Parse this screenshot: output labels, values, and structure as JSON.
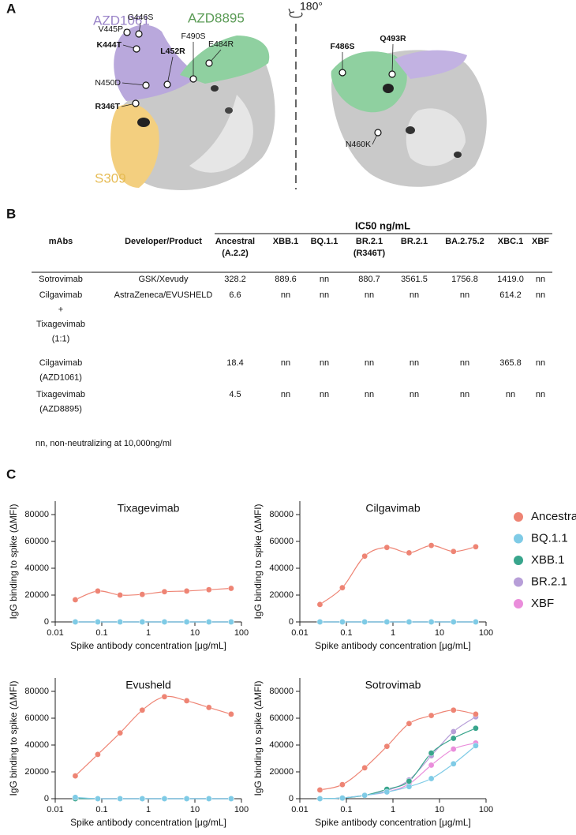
{
  "panel_labels": [
    "A",
    "B",
    "C"
  ],
  "panel_a": {
    "antibodies": [
      "AZD1061",
      "AZD8895",
      "S309"
    ],
    "rotation": "180°",
    "mutations": [
      "V445P",
      "G446S",
      "K444T",
      "L452R",
      "F490S",
      "E484R",
      "N450D",
      "R346T",
      "F486S",
      "Q493R",
      "N460K"
    ]
  },
  "table": {
    "group_header": "IC50 ng/mL",
    "columns": [
      [
        "mAbs"
      ],
      [
        "Developer/Product"
      ],
      [
        "Ancestral",
        "(A.2.2)"
      ],
      [
        "XBB.1"
      ],
      [
        "BQ.1.1"
      ],
      [
        "BR.2.1",
        "(R346T)"
      ],
      [
        "BR.2.1"
      ],
      [
        "BA.2.75.2"
      ],
      [
        "XBC.1"
      ],
      [
        "XBF"
      ]
    ],
    "rows": [
      [
        "Sotrovimab",
        "GSK/Xevudy",
        "328.2",
        "889.6",
        "nn",
        "880.7",
        "3561.5",
        "1756.8",
        "1419.0",
        "nn"
      ],
      [
        [
          "Cilgavimab",
          "+",
          "Tixagevimab",
          "(1:1)"
        ],
        "AstraZeneca/EVUSHELD",
        "6.6",
        "nn",
        "nn",
        "nn",
        "nn",
        "nn",
        "614.2",
        "nn"
      ],
      [
        [
          "Cilgavimab",
          "(AZD1061)"
        ],
        null,
        "18.4",
        "nn",
        "nn",
        "nn",
        "nn",
        "nn",
        "365.8",
        "nn"
      ],
      [
        [
          "Tixagevimab",
          "(AZD8895)"
        ],
        null,
        "4.5",
        "nn",
        "nn",
        "nn",
        "nn",
        "nn",
        "nn",
        "nn"
      ]
    ],
    "footnote": "nn, non-neutralizing at 10,000ng/ml"
  },
  "legend": [
    {
      "name": "Ancestral",
      "color": "#ee8474"
    },
    {
      "name": "BQ.1.1",
      "color": "#7fcbe6"
    },
    {
      "name": "XBB.1",
      "color": "#38a58c"
    },
    {
      "name": "BR.2.1",
      "color": "#b79ed8"
    },
    {
      "name": "XBF",
      "color": "#ea8ddb"
    }
  ],
  "chart_data": [
    {
      "type": "line",
      "title": "Tixagevimab",
      "x_label": "Spike antibody concentration [μg/mL]",
      "y_label": "IgG binding to spike (ΔMFI)",
      "xscale": "log",
      "x": [
        0.027,
        0.082,
        0.247,
        0.741,
        2.22,
        6.67,
        20,
        60
      ],
      "xlim": [
        0.01,
        100
      ],
      "xticks": [
        0.01,
        0.1,
        1,
        10,
        100
      ],
      "ylim": [
        0,
        90000
      ],
      "yticks": [
        0,
        20000,
        40000,
        60000,
        80000
      ],
      "series": [
        {
          "values": [
            16500,
            23000,
            20000,
            20500,
            22500,
            23000,
            24000,
            25000
          ]
        },
        {
          "values": [
            0,
            0,
            0,
            0,
            0,
            0,
            0,
            0
          ]
        },
        {
          "values": [
            0,
            0,
            0,
            0,
            0,
            0,
            0,
            0
          ]
        },
        {
          "values": [
            0,
            0,
            0,
            0,
            0,
            0,
            0,
            0
          ]
        },
        {
          "values": [
            0,
            0,
            0,
            0,
            0,
            0,
            0,
            0
          ]
        }
      ]
    },
    {
      "type": "line",
      "title": "Cilgavimab",
      "x_label": "Spike antibody concentration [μg/mL]",
      "y_label": "IgG binding to spike (ΔMFI)",
      "xscale": "log",
      "x": [
        0.027,
        0.082,
        0.247,
        0.741,
        2.22,
        6.67,
        20,
        60
      ],
      "xlim": [
        0.01,
        100
      ],
      "xticks": [
        0.01,
        0.1,
        1,
        10,
        100
      ],
      "ylim": [
        0,
        90000
      ],
      "yticks": [
        0,
        20000,
        40000,
        60000,
        80000
      ],
      "series": [
        {
          "values": [
            13000,
            25500,
            49000,
            55500,
            51500,
            57000,
            52500,
            56000
          ]
        },
        {
          "values": [
            0,
            0,
            0,
            0,
            0,
            0,
            0,
            0
          ]
        },
        {
          "values": [
            0,
            0,
            0,
            0,
            0,
            0,
            0,
            0
          ]
        },
        {
          "values": [
            0,
            0,
            0,
            0,
            0,
            0,
            0,
            0
          ]
        },
        {
          "values": [
            0,
            0,
            0,
            0,
            0,
            0,
            0,
            0
          ]
        }
      ]
    },
    {
      "type": "line",
      "title": "Evusheld",
      "x_label": "Spike antibody concentration [μg/mL]",
      "y_label": "IgG binding to spike (ΔMFI)",
      "xscale": "log",
      "x": [
        0.027,
        0.082,
        0.247,
        0.741,
        2.22,
        6.67,
        20,
        60
      ],
      "xlim": [
        0.01,
        100
      ],
      "xticks": [
        0.01,
        0.1,
        1,
        10,
        100
      ],
      "ylim": [
        0,
        90000
      ],
      "yticks": [
        0,
        20000,
        40000,
        60000,
        80000
      ],
      "series": [
        {
          "values": [
            17000,
            33000,
            49000,
            66000,
            76000,
            73000,
            68000,
            63000
          ]
        },
        {
          "values": [
            1000,
            0,
            0,
            0,
            0,
            0,
            0,
            0
          ]
        },
        {
          "values": [
            0,
            0,
            0,
            0,
            0,
            0,
            0,
            0
          ]
        },
        {
          "values": [
            0,
            0,
            0,
            0,
            0,
            0,
            0,
            0
          ]
        },
        {
          "values": [
            0,
            0,
            0,
            0,
            0,
            0,
            0,
            0
          ]
        }
      ]
    },
    {
      "type": "line",
      "title": "Sotrovimab",
      "x_label": "Spike antibody concentration [μg/mL]",
      "y_label": "IgG binding to spike (ΔMFI)",
      "xscale": "log",
      "x": [
        0.027,
        0.082,
        0.247,
        0.741,
        2.22,
        6.67,
        20,
        60
      ],
      "xlim": [
        0.01,
        100
      ],
      "xticks": [
        0.01,
        0.1,
        1,
        10,
        100
      ],
      "ylim": [
        0,
        90000
      ],
      "yticks": [
        0,
        20000,
        40000,
        60000,
        80000
      ],
      "series": [
        {
          "values": [
            6500,
            10500,
            23000,
            39000,
            56000,
            62000,
            66000,
            63000
          ]
        },
        {
          "values": [
            0,
            500,
            2500,
            5000,
            9000,
            15000,
            26000,
            39500
          ]
        },
        {
          "values": [
            0,
            500,
            2500,
            7000,
            13000,
            34000,
            45000,
            52500
          ]
        },
        {
          "values": [
            0,
            500,
            2500,
            6000,
            14000,
            32000,
            50000,
            61000
          ]
        },
        {
          "values": [
            0,
            500,
            2500,
            5000,
            11000,
            25000,
            37000,
            41500
          ]
        }
      ]
    }
  ]
}
